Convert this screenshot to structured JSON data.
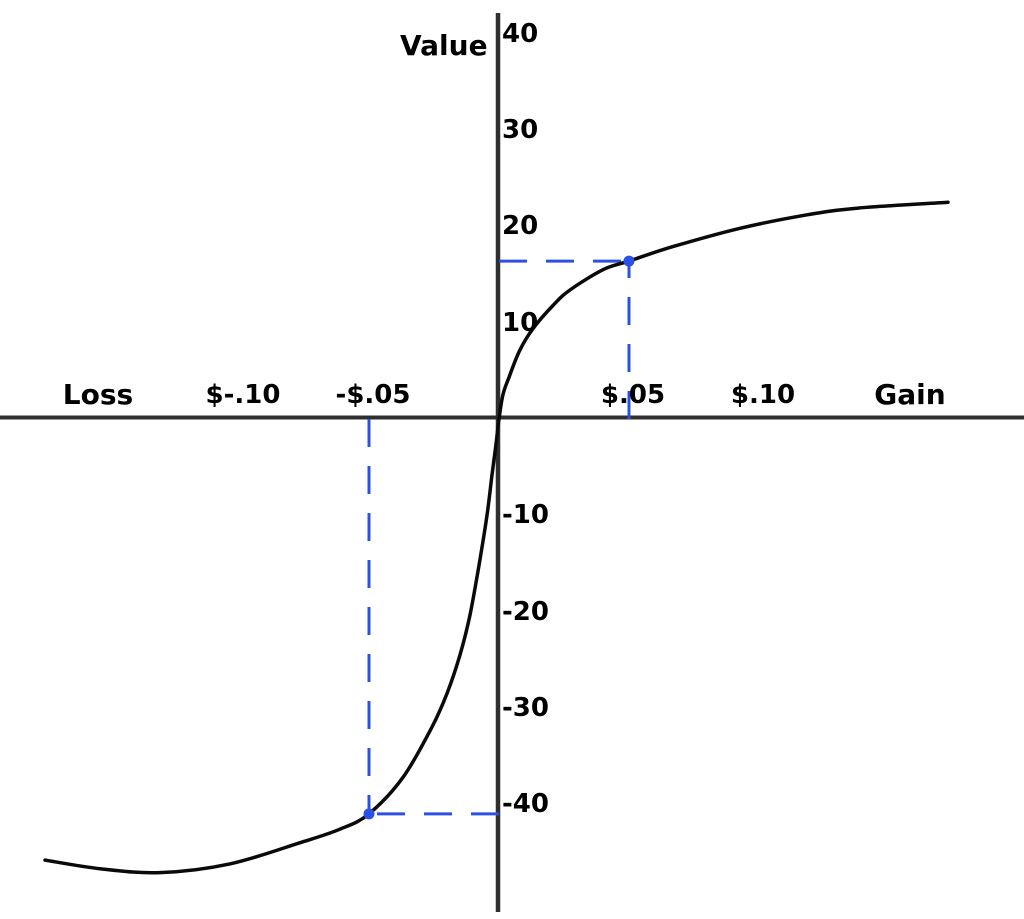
{
  "chart_data": {
    "type": "line",
    "description": "Prospect theory value function: S-shaped curve through the origin, concave for gains and convex (steeper) for losses, with dashed reference lines marking the subjective value of a $.05 gain and a $.05 loss.",
    "y_axis": {
      "label": "Value",
      "ticks": [
        40,
        30,
        20,
        10,
        -10,
        -20,
        -30,
        -40
      ],
      "range": [
        -52,
        43.5
      ],
      "grid": false
    },
    "x_axis": {
      "neg_label": "Loss",
      "pos_label": "Gain",
      "ticks": [
        {
          "label": "$-.10",
          "value": -0.1
        },
        {
          "label": "-$.05",
          "value": -0.05
        },
        {
          "label": "$.05",
          "value": 0.05
        },
        {
          "label": "$.10",
          "value": 0.1
        }
      ],
      "range": [
        -0.192,
        0.202
      ],
      "grid": false
    },
    "series": [
      {
        "name": "value-function",
        "color": "#0a0a0a",
        "points": [
          [
            -0.1746,
            -45.8
          ],
          [
            -0.1535,
            -46.7
          ],
          [
            -0.1304,
            -47.1
          ],
          [
            -0.1035,
            -46.2
          ],
          [
            -0.0765,
            -44.0
          ],
          [
            -0.0612,
            -42.6
          ],
          [
            -0.05,
            -41.0
          ],
          [
            -0.0369,
            -37.2
          ],
          [
            -0.0258,
            -32.0
          ],
          [
            -0.02,
            -28.5
          ],
          [
            -0.015,
            -24.5
          ],
          [
            -0.0112,
            -20.4
          ],
          [
            -0.0077,
            -15.2
          ],
          [
            -0.0046,
            -10.0
          ],
          [
            -0.0027,
            -5.8
          ],
          [
            -0.0012,
            -2.7
          ],
          [
            0,
            0
          ],
          [
            0.0015,
            2.5
          ],
          [
            0.0038,
            4.3
          ],
          [
            0.0081,
            7.2
          ],
          [
            0.0131,
            9.4
          ],
          [
            0.0208,
            11.8
          ],
          [
            0.0273,
            13.4
          ],
          [
            0.04,
            15.5
          ],
          [
            0.05,
            16.4
          ],
          [
            0.0669,
            17.9
          ],
          [
            0.0927,
            19.8
          ],
          [
            0.1185,
            21.2
          ],
          [
            0.1381,
            21.9
          ],
          [
            0.1727,
            22.5
          ]
        ]
      }
    ],
    "annotations": {
      "style": "dashed-guides-with-dot",
      "color": "#2b50e6",
      "points": [
        {
          "x": 0.05,
          "value": 16.4,
          "x_label": "$.05"
        },
        {
          "x": -0.05,
          "value": -41.0,
          "x_label": "-$.05"
        }
      ]
    },
    "colors": {
      "curve": "#0a0a0a",
      "axis": "#2f2f2f",
      "annotation": "#2b50e6",
      "text": "#000000",
      "background": "#ffffff"
    }
  }
}
